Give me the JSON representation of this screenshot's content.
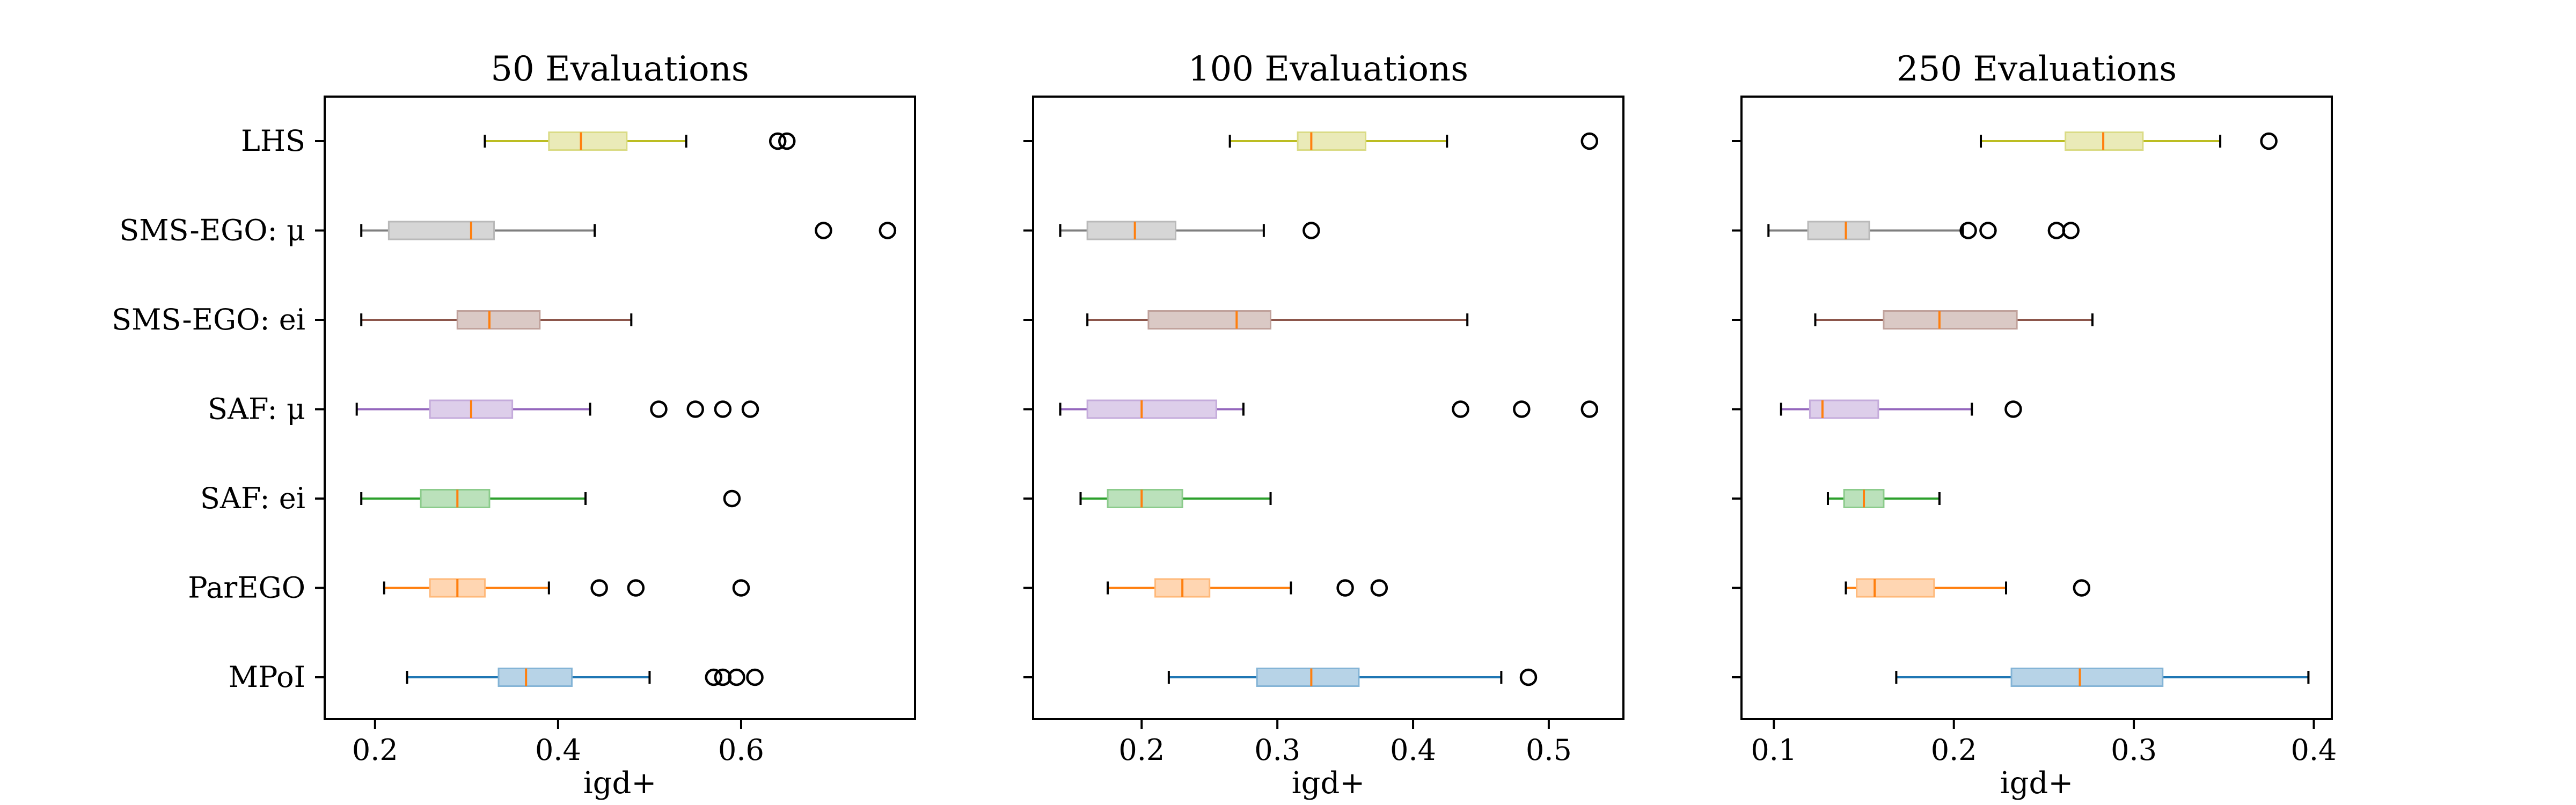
{
  "categories": [
    "LHS",
    "SMS-EGO: μ",
    "SMS-EGO: ei",
    "SAF: μ",
    "SAF: ei",
    "ParEGO",
    "MPoI"
  ],
  "colors": {
    "LHS": "#bcbd22",
    "SMS-EGO: μ": "#7f7f7f",
    "SMS-EGO: ei": "#8c564b",
    "SAF: μ": "#9467bd",
    "SAF: ei": "#2ca02c",
    "ParEGO": "#ff7f0e",
    "MPoI": "#1f77b4",
    "median": "#ff7f0e"
  },
  "chart_data": [
    {
      "type": "boxplot",
      "orientation": "horizontal",
      "title": "50 Evaluations",
      "xlabel": "igd+",
      "xlim": [
        0.145,
        0.79
      ],
      "xticks": [
        0.2,
        0.4,
        0.6
      ],
      "xtick_labels": [
        "0.2",
        "0.4",
        "0.6"
      ],
      "series": [
        {
          "name": "LHS",
          "whisker_low": 0.32,
          "q1": 0.39,
          "median": 0.425,
          "q3": 0.475,
          "whisker_high": 0.54,
          "outliers": [
            0.64,
            0.65
          ]
        },
        {
          "name": "SMS-EGO: μ",
          "whisker_low": 0.185,
          "q1": 0.215,
          "median": 0.305,
          "q3": 0.33,
          "whisker_high": 0.44,
          "outliers": [
            0.69,
            0.76
          ]
        },
        {
          "name": "SMS-EGO: ei",
          "whisker_low": 0.185,
          "q1": 0.29,
          "median": 0.325,
          "q3": 0.38,
          "whisker_high": 0.48,
          "outliers": []
        },
        {
          "name": "SAF: μ",
          "whisker_low": 0.18,
          "q1": 0.26,
          "median": 0.305,
          "q3": 0.35,
          "whisker_high": 0.435,
          "outliers": [
            0.51,
            0.55,
            0.58,
            0.61
          ]
        },
        {
          "name": "SAF: ei",
          "whisker_low": 0.185,
          "q1": 0.25,
          "median": 0.29,
          "q3": 0.325,
          "whisker_high": 0.43,
          "outliers": [
            0.59
          ]
        },
        {
          "name": "ParEGO",
          "whisker_low": 0.21,
          "q1": 0.26,
          "median": 0.29,
          "q3": 0.32,
          "whisker_high": 0.39,
          "outliers": [
            0.445,
            0.485,
            0.6
          ]
        },
        {
          "name": "MPoI",
          "whisker_low": 0.235,
          "q1": 0.335,
          "median": 0.365,
          "q3": 0.415,
          "whisker_high": 0.5,
          "outliers": [
            0.57,
            0.58,
            0.595,
            0.615
          ]
        }
      ]
    },
    {
      "type": "boxplot",
      "orientation": "horizontal",
      "title": "100 Evaluations",
      "xlabel": "igd+",
      "xlim": [
        0.12,
        0.555
      ],
      "xticks": [
        0.2,
        0.3,
        0.4,
        0.5
      ],
      "xtick_labels": [
        "0.2",
        "0.3",
        "0.4",
        "0.5"
      ],
      "series": [
        {
          "name": "LHS",
          "whisker_low": 0.265,
          "q1": 0.315,
          "median": 0.325,
          "q3": 0.365,
          "whisker_high": 0.425,
          "outliers": [
            0.53
          ]
        },
        {
          "name": "SMS-EGO: μ",
          "whisker_low": 0.14,
          "q1": 0.16,
          "median": 0.195,
          "q3": 0.225,
          "whisker_high": 0.29,
          "outliers": [
            0.325
          ]
        },
        {
          "name": "SMS-EGO: ei",
          "whisker_low": 0.16,
          "q1": 0.205,
          "median": 0.27,
          "q3": 0.295,
          "whisker_high": 0.44,
          "outliers": []
        },
        {
          "name": "SAF: μ",
          "whisker_low": 0.14,
          "q1": 0.16,
          "median": 0.2,
          "q3": 0.255,
          "whisker_high": 0.275,
          "outliers": [
            0.435,
            0.48,
            0.53
          ]
        },
        {
          "name": "SAF: ei",
          "whisker_low": 0.155,
          "q1": 0.175,
          "median": 0.2,
          "q3": 0.23,
          "whisker_high": 0.295,
          "outliers": []
        },
        {
          "name": "ParEGO",
          "whisker_low": 0.175,
          "q1": 0.21,
          "median": 0.23,
          "q3": 0.25,
          "whisker_high": 0.31,
          "outliers": [
            0.35,
            0.375
          ]
        },
        {
          "name": "MPoI",
          "whisker_low": 0.22,
          "q1": 0.285,
          "median": 0.325,
          "q3": 0.36,
          "whisker_high": 0.465,
          "outliers": [
            0.485
          ]
        }
      ]
    },
    {
      "type": "boxplot",
      "orientation": "horizontal",
      "title": "250 Evaluations",
      "xlabel": "igd+",
      "xlim": [
        0.082,
        0.41
      ],
      "xticks": [
        0.1,
        0.2,
        0.3,
        0.4
      ],
      "xtick_labels": [
        "0.1",
        "0.2",
        "0.3",
        "0.4"
      ],
      "series": [
        {
          "name": "LHS",
          "whisker_low": 0.215,
          "q1": 0.262,
          "median": 0.283,
          "q3": 0.305,
          "whisker_high": 0.348,
          "outliers": [
            0.375
          ]
        },
        {
          "name": "SMS-EGO: μ",
          "whisker_low": 0.097,
          "q1": 0.119,
          "median": 0.14,
          "q3": 0.153,
          "whisker_high": 0.205,
          "outliers": [
            0.208,
            0.219,
            0.257,
            0.265
          ]
        },
        {
          "name": "SMS-EGO: ei",
          "whisker_low": 0.123,
          "q1": 0.161,
          "median": 0.192,
          "q3": 0.235,
          "whisker_high": 0.277,
          "outliers": []
        },
        {
          "name": "SAF: μ",
          "whisker_low": 0.104,
          "q1": 0.12,
          "median": 0.127,
          "q3": 0.158,
          "whisker_high": 0.21,
          "outliers": [
            0.233
          ]
        },
        {
          "name": "SAF: ei",
          "whisker_low": 0.13,
          "q1": 0.139,
          "median": 0.15,
          "q3": 0.161,
          "whisker_high": 0.192,
          "outliers": []
        },
        {
          "name": "ParEGO",
          "whisker_low": 0.14,
          "q1": 0.146,
          "median": 0.156,
          "q3": 0.189,
          "whisker_high": 0.229,
          "outliers": [
            0.271
          ]
        },
        {
          "name": "MPoI",
          "whisker_low": 0.168,
          "q1": 0.232,
          "median": 0.27,
          "q3": 0.316,
          "whisker_high": 0.397,
          "outliers": []
        }
      ]
    }
  ]
}
